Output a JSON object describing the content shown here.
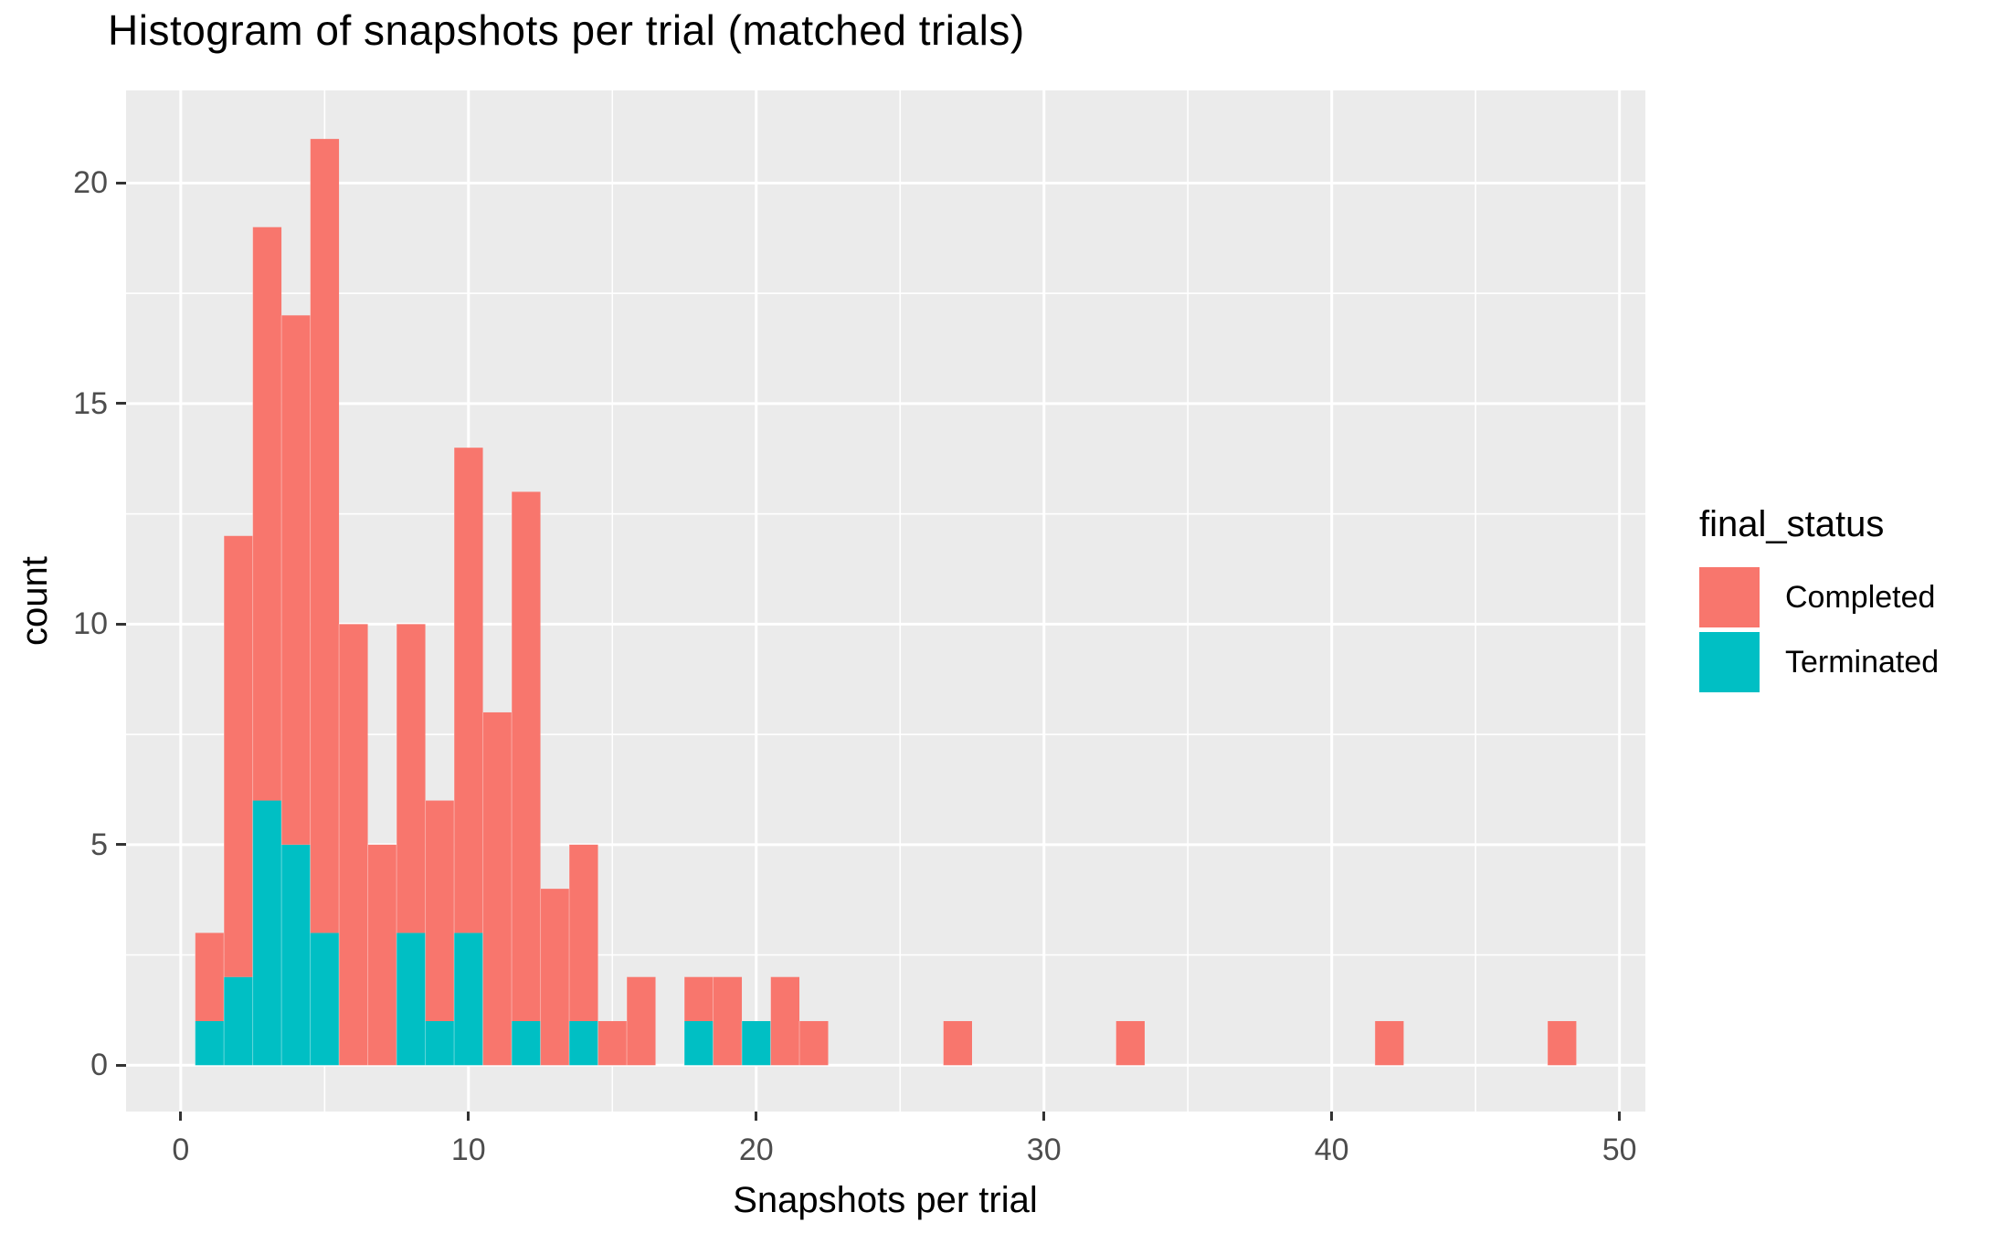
{
  "chart_data": {
    "type": "bar",
    "subtype": "stacked-histogram",
    "title": "Histogram of snapshots per trial (matched trials)",
    "xlabel": "Snapshots per trial",
    "ylabel": "count",
    "legend_title": "final_status",
    "legend_position": "right",
    "series_names": [
      "Completed",
      "Terminated"
    ],
    "colors": {
      "Completed": "#F8766D",
      "Terminated": "#00BFC4"
    },
    "panel_bg": "#EBEBEB",
    "grid_color": "#FFFFFF",
    "tick_label_color": "#4D4D4D",
    "tick_mark_color": "#333333",
    "binwidth": 1,
    "grid": true,
    "x_ticks": [
      0,
      10,
      20,
      30,
      40,
      50
    ],
    "y_ticks": [
      0,
      5,
      10,
      15,
      20
    ],
    "x_minor": [
      5,
      15,
      25,
      35,
      45
    ],
    "y_minor": [
      2.5,
      7.5,
      12.5,
      17.5
    ],
    "xlim": [
      -1.9,
      50.9
    ],
    "ylim": [
      -1.05,
      22.1
    ],
    "bins": [
      {
        "x": 1,
        "completed": 2,
        "terminated": 1
      },
      {
        "x": 2,
        "completed": 10,
        "terminated": 2
      },
      {
        "x": 3,
        "completed": 13,
        "terminated": 6
      },
      {
        "x": 4,
        "completed": 12,
        "terminated": 5
      },
      {
        "x": 5,
        "completed": 18,
        "terminated": 3
      },
      {
        "x": 6,
        "completed": 10,
        "terminated": 0
      },
      {
        "x": 7,
        "completed": 5,
        "terminated": 0
      },
      {
        "x": 8,
        "completed": 7,
        "terminated": 3
      },
      {
        "x": 9,
        "completed": 5,
        "terminated": 1
      },
      {
        "x": 10,
        "completed": 11,
        "terminated": 3
      },
      {
        "x": 11,
        "completed": 8,
        "terminated": 0
      },
      {
        "x": 12,
        "completed": 12,
        "terminated": 1
      },
      {
        "x": 13,
        "completed": 4,
        "terminated": 0
      },
      {
        "x": 14,
        "completed": 4,
        "terminated": 1
      },
      {
        "x": 15,
        "completed": 1,
        "terminated": 0
      },
      {
        "x": 16,
        "completed": 2,
        "terminated": 0
      },
      {
        "x": 18,
        "completed": 1,
        "terminated": 1
      },
      {
        "x": 19,
        "completed": 2,
        "terminated": 0
      },
      {
        "x": 20,
        "completed": 0,
        "terminated": 1
      },
      {
        "x": 21,
        "completed": 2,
        "terminated": 0
      },
      {
        "x": 22,
        "completed": 1,
        "terminated": 0
      },
      {
        "x": 27,
        "completed": 1,
        "terminated": 0
      },
      {
        "x": 33,
        "completed": 1,
        "terminated": 0
      },
      {
        "x": 42,
        "completed": 1,
        "terminated": 0
      },
      {
        "x": 48,
        "completed": 1,
        "terminated": 0
      }
    ]
  },
  "legend": {
    "title": "final_status",
    "items": [
      {
        "label": "Completed",
        "color": "#F8766D"
      },
      {
        "label": "Terminated",
        "color": "#00BFC4"
      }
    ]
  }
}
